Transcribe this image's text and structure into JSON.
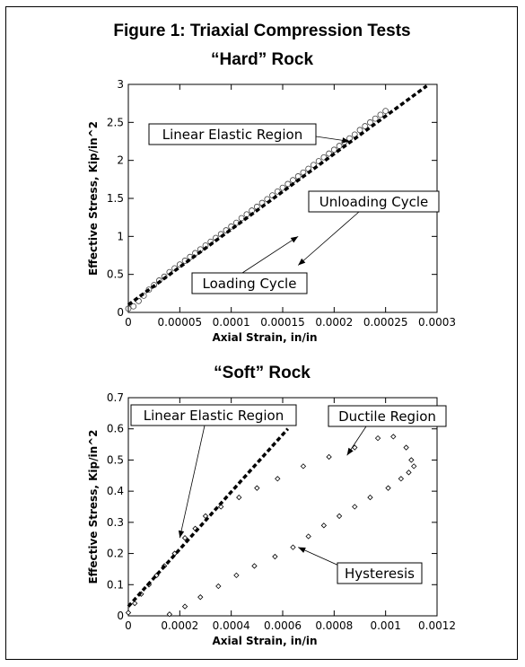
{
  "figure": {
    "title": "Figure 1: Triaxial Compression Tests"
  },
  "chart_data": [
    {
      "type": "scatter",
      "title": "“Hard” Rock",
      "xlabel": "Axial Strain, in/in",
      "ylabel": "Effective Stress, Kip/in^2",
      "xlim": [
        0,
        0.0003
      ],
      "ylim": [
        0,
        3
      ],
      "x_ticks": [
        "0",
        "0.00005",
        "0.0001",
        "0.00015",
        "0.0002",
        "0.00025",
        "0.0003"
      ],
      "x_tick_values": [
        0,
        5e-05,
        0.0001,
        0.00015,
        0.0002,
        0.00025,
        0.0003
      ],
      "y_ticks": [
        "0",
        "0.5",
        "1",
        "1.5",
        "2",
        "2.5",
        "3"
      ],
      "y_tick_values": [
        0,
        0.5,
        1,
        1.5,
        2,
        2.5,
        3
      ],
      "grid": false,
      "series": [
        {
          "marker": "circle",
          "x": [
            0,
            1e-05,
            2e-05,
            3e-05,
            4e-05,
            5e-05,
            6e-05,
            7e-05,
            8e-05,
            9e-05,
            0.0001,
            0.00011,
            0.00012,
            0.00013,
            0.00014,
            0.00015,
            0.00016,
            0.00017,
            0.00018,
            0.00019,
            0.0002,
            0.00021,
            0.00022,
            0.00023,
            0.00024,
            0.00025,
            5e-06,
            1.5e-05,
            2.5e-05,
            3.5e-05,
            4.5e-05,
            5.5e-05,
            6.5e-05,
            7.5e-05,
            8.5e-05,
            9.5e-05,
            0.000105,
            0.000115,
            0.000125,
            0.000135,
            0.000145,
            0.000155,
            0.000165,
            0.000175,
            0.000185,
            0.000195,
            0.000205,
            0.000215,
            0.000225,
            0.000235,
            0.000245
          ],
          "y": [
            0.05,
            0.15,
            0.3,
            0.42,
            0.53,
            0.63,
            0.73,
            0.83,
            0.93,
            1.03,
            1.13,
            1.24,
            1.34,
            1.44,
            1.54,
            1.64,
            1.74,
            1.84,
            1.94,
            2.04,
            2.14,
            2.24,
            2.34,
            2.45,
            2.55,
            2.65,
            0.08,
            0.22,
            0.36,
            0.47,
            0.58,
            0.68,
            0.78,
            0.88,
            0.98,
            1.08,
            1.18,
            1.29,
            1.39,
            1.49,
            1.59,
            1.69,
            1.79,
            1.89,
            1.99,
            2.09,
            2.19,
            2.29,
            2.4,
            2.5,
            2.6
          ]
        },
        {
          "style": "dashed",
          "x": [
            0,
            0.00029
          ],
          "y": [
            0.1,
            2.98
          ]
        }
      ],
      "annotations": [
        {
          "text": "Linear Elastic Region",
          "point": [
            0.000215,
            2.25
          ]
        },
        {
          "text": "Unloading Cycle",
          "point": [
            0.000165,
            0.62
          ]
        },
        {
          "text": "Loading Cycle",
          "point": [
            0.000165,
            1.0
          ]
        }
      ]
    },
    {
      "type": "scatter",
      "title": "“Soft” Rock",
      "xlabel": "Axial Strain, in/in",
      "ylabel": "Effective Stress, Kip/in^2",
      "xlim": [
        0,
        0.0012
      ],
      "ylim": [
        0,
        0.7
      ],
      "x_ticks": [
        "0",
        "0.0002",
        "0.0004",
        "0.0006",
        "0.0008",
        "0.001",
        "0.0012"
      ],
      "x_tick_values": [
        0,
        0.0002,
        0.0004,
        0.0006,
        0.0008,
        0.001,
        0.0012
      ],
      "y_ticks": [
        "0",
        "0.1",
        "0.2",
        "0.3",
        "0.4",
        "0.5",
        "0.6",
        "0.7"
      ],
      "y_tick_values": [
        0,
        0.1,
        0.2,
        0.3,
        0.4,
        0.5,
        0.6,
        0.7
      ],
      "grid": false,
      "series": [
        {
          "marker": "diamond",
          "x": [
            0,
            2.5e-05,
            5e-05,
            8e-05,
            0.00011,
            0.00014,
            0.00018,
            0.00022,
            0.00026,
            0.0003,
            0.00036,
            0.00043,
            0.0005,
            0.00058,
            0.00068,
            0.00078,
            0.00088,
            0.00097,
            0.00103,
            0.00108,
            0.0011,
            0.00111,
            0.00109,
            0.00106,
            0.00101,
            0.00094,
            0.00088,
            0.00082,
            0.00076,
            0.0007,
            0.00064,
            0.00057,
            0.00049,
            0.00042,
            0.00035,
            0.00028,
            0.00022,
            0.00016
          ],
          "y": [
            0.01,
            0.04,
            0.07,
            0.1,
            0.13,
            0.16,
            0.2,
            0.25,
            0.28,
            0.32,
            0.35,
            0.38,
            0.41,
            0.44,
            0.48,
            0.51,
            0.54,
            0.57,
            0.575,
            0.54,
            0.5,
            0.48,
            0.46,
            0.44,
            0.41,
            0.38,
            0.35,
            0.32,
            0.29,
            0.255,
            0.22,
            0.19,
            0.16,
            0.13,
            0.095,
            0.06,
            0.03,
            0.005
          ]
        },
        {
          "style": "dashed",
          "x": [
            0,
            0.00062
          ],
          "y": [
            0.03,
            0.6
          ]
        }
      ],
      "annotations": [
        {
          "text": "Linear Elastic Region",
          "point": [
            0.0002,
            0.25
          ]
        },
        {
          "text": "Ductile Region",
          "point": [
            0.00085,
            0.515
          ]
        },
        {
          "text": "Hysteresis",
          "point": [
            0.00066,
            0.22
          ]
        }
      ]
    }
  ]
}
